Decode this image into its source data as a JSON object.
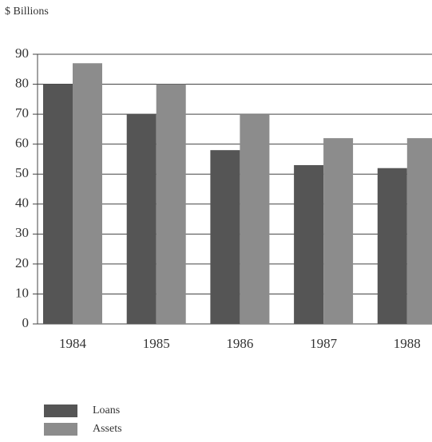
{
  "chart_data": {
    "type": "bar",
    "title": "$ Billions",
    "categories": [
      "1984",
      "1985",
      "1986",
      "1987",
      "1988"
    ],
    "series": [
      {
        "name": "Loans",
        "color": "#555555",
        "values": [
          80,
          70,
          58,
          53,
          52
        ]
      },
      {
        "name": "Assets",
        "color": "#8c8c8c",
        "values": [
          87,
          80,
          70,
          62,
          62
        ]
      }
    ],
    "ylim": [
      0,
      90
    ],
    "yticks": [
      0,
      10,
      20,
      30,
      40,
      50,
      60,
      70,
      80,
      90
    ],
    "grid": true
  }
}
